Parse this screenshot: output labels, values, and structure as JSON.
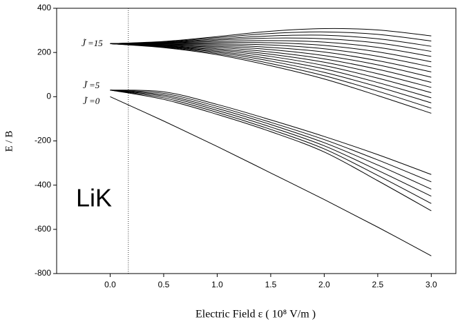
{
  "chart_data": {
    "type": "line",
    "x_label": "Electric Field ε ( 10⁸ V/m )",
    "y_label": "E / B",
    "annotations": [
      "J̃ =15",
      "J̃ =5",
      "J̃ =0",
      "LiK"
    ],
    "color": "#000000",
    "x": [
      0,
      0.5,
      1,
      1.5,
      2,
      2.5,
      3
    ],
    "series": [
      {
        "values": [
          240,
          250,
          272,
          296,
          308,
          302,
          275
        ]
      },
      {
        "values": [
          240,
          248,
          267,
          286,
          293,
          282,
          252
        ]
      },
      {
        "values": [
          240,
          246,
          261,
          275,
          278,
          262,
          228
        ]
      },
      {
        "values": [
          240,
          244,
          256,
          265,
          262,
          243,
          205
        ]
      },
      {
        "values": [
          240,
          243,
          250,
          254,
          247,
          223,
          182
        ]
      },
      {
        "values": [
          240,
          241,
          245,
          244,
          232,
          203,
          158
        ]
      },
      {
        "values": [
          240,
          239,
          239,
          234,
          217,
          183,
          135
        ]
      },
      {
        "values": [
          240,
          237,
          234,
          223,
          202,
          163,
          112
        ]
      },
      {
        "values": [
          240,
          235,
          228,
          213,
          186,
          144,
          88
        ]
      },
      {
        "values": [
          240,
          233,
          223,
          202,
          171,
          124,
          65
        ]
      },
      {
        "values": [
          240,
          231,
          217,
          192,
          156,
          104,
          42
        ]
      },
      {
        "values": [
          240,
          229,
          212,
          182,
          141,
          84,
          18
        ]
      },
      {
        "values": [
          240,
          228,
          206,
          171,
          126,
          64,
          -5
        ]
      },
      {
        "values": [
          240,
          226,
          201,
          161,
          110,
          45,
          -28
        ]
      },
      {
        "values": [
          240,
          224,
          195,
          150,
          95,
          25,
          -52
        ]
      },
      {
        "values": [
          240,
          222,
          190,
          140,
          80,
          5,
          -75
        ]
      },
      {
        "values": [
          30,
          22,
          -35,
          -105,
          -180,
          -262,
          -352
        ]
      },
      {
        "values": [
          30,
          15,
          -44,
          -116,
          -194,
          -286,
          -385
        ]
      },
      {
        "values": [
          30,
          8,
          -53,
          -126,
          -208,
          -309,
          -418
        ]
      },
      {
        "values": [
          30,
          2,
          -62,
          -137,
          -222,
          -333,
          -450
        ]
      },
      {
        "values": [
          30,
          -5,
          -71,
          -148,
          -236,
          -356,
          -483
        ]
      },
      {
        "values": [
          30,
          -12,
          -80,
          -158,
          -250,
          -380,
          -516
        ]
      },
      {
        "values": [
          0,
          -110,
          -225,
          -345,
          -465,
          -590,
          -720
        ]
      }
    ],
    "vline_x": 0.17,
    "xlim": [
      -0.5,
      3.23
    ],
    "ylim": [
      -800,
      400
    ],
    "xticks": [
      {
        "value": 0,
        "label": "0.0"
      },
      {
        "value": 0.5,
        "label": "0.5"
      },
      {
        "value": 1,
        "label": "1.0"
      },
      {
        "value": 1.5,
        "label": "1.5"
      },
      {
        "value": 2,
        "label": "2.0"
      },
      {
        "value": 2.5,
        "label": "2.5"
      },
      {
        "value": 3,
        "label": "3.0"
      }
    ],
    "yticks": [
      400,
      200,
      0,
      -200,
      -400,
      -600,
      -800
    ]
  }
}
